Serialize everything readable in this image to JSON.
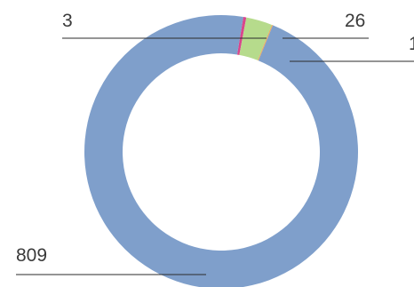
{
  "chart_data": {
    "type": "pie",
    "variant": "donut",
    "slices": [
      {
        "value": 809,
        "label": "809",
        "color": "#7f9fcb"
      },
      {
        "value": 3,
        "label": "3",
        "color": "#d9468c"
      },
      {
        "value": 26,
        "label": "26",
        "color": "#b6db8c"
      },
      {
        "value": 1,
        "label": "1",
        "color": "#f2a65a"
      }
    ],
    "legend": "none"
  }
}
